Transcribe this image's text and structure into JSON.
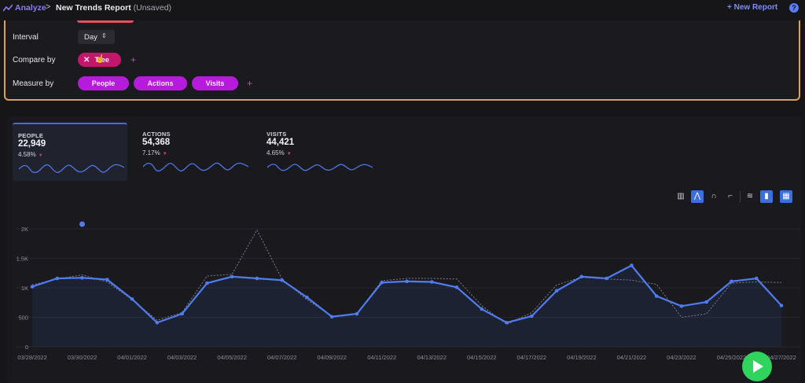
{
  "breadcrumb": {
    "app": "Analyze",
    "separator": ">",
    "title": "New Trends Report",
    "status": "(Unsaved)"
  },
  "header": {
    "new_report": "+ New Report",
    "help": "?"
  },
  "query": {
    "interval_label": "Interval",
    "interval_value": "Day",
    "compare_label": "Compare by",
    "compare_value": "Tree",
    "measure_label": "Measure by",
    "measures": [
      "People",
      "Actions",
      "Visits"
    ],
    "add_symbol": "+"
  },
  "metrics": [
    {
      "label": "PEOPLE",
      "value": "22,949",
      "change": "4.58%",
      "active": true
    },
    {
      "label": "ACTIONS",
      "value": "54,368",
      "change": "7.17%",
      "active": false
    },
    {
      "label": "VISITS",
      "value": "44,421",
      "change": "4.65%",
      "active": false
    }
  ],
  "toolbar": {
    "icons": [
      "bar-chart-icon",
      "line-chart-icon",
      "smooth-line-icon",
      "step-line-icon",
      "stacked-icon",
      "column-toggle-icon",
      "calendar-icon"
    ]
  },
  "colors": {
    "accent": "#3e6fe8",
    "compare_pill": "#c4166a",
    "measure_pill": "#b61bdc",
    "panel_border": "#d9a25b",
    "play": "#2fd35e"
  },
  "chart_data": {
    "type": "line",
    "y_ticks": [
      "0",
      "500",
      "1K",
      "1.5K",
      "2K"
    ],
    "ylim": [
      0,
      2000
    ],
    "x_tick_labels": [
      "03/28/2022",
      "03/30/2022",
      "04/01/2022",
      "04/03/2022",
      "04/05/2022",
      "04/07/2022",
      "04/09/2022",
      "04/11/2022",
      "04/13/2022",
      "04/15/2022",
      "04/17/2022",
      "04/19/2022",
      "04/21/2022",
      "04/23/2022",
      "04/25/2022",
      "04/27/2022"
    ],
    "x": [
      "03/28/2022",
      "03/29/2022",
      "03/30/2022",
      "03/31/2022",
      "04/01/2022",
      "04/02/2022",
      "04/03/2022",
      "04/04/2022",
      "04/05/2022",
      "04/06/2022",
      "04/07/2022",
      "04/08/2022",
      "04/09/2022",
      "04/10/2022",
      "04/11/2022",
      "04/12/2022",
      "04/13/2022",
      "04/14/2022",
      "04/15/2022",
      "04/16/2022",
      "04/17/2022",
      "04/18/2022",
      "04/19/2022",
      "04/20/2022",
      "04/21/2022",
      "04/22/2022",
      "04/23/2022",
      "04/24/2022",
      "04/25/2022",
      "04/26/2022",
      "04/27/2022"
    ],
    "series": [
      {
        "values": [
          1020,
          1160,
          1170,
          1140,
          810,
          410,
          560,
          1080,
          1190,
          1160,
          1130,
          840,
          510,
          560,
          1090,
          1110,
          1100,
          1010,
          640,
          410,
          520,
          950,
          1190,
          1160,
          1380,
          860,
          690,
          760,
          1110,
          1160,
          700
        ]
      },
      {
        "values": [
          1050,
          1150,
          1220,
          1100,
          800,
          450,
          580,
          1200,
          1230,
          1980,
          1150,
          800,
          520,
          560,
          1120,
          1160,
          1160,
          1150,
          700,
          380,
          580,
          1050,
          1180,
          1150,
          1130,
          1060,
          500,
          560,
          1080,
          1100,
          1090
        ]
      }
    ],
    "highlight_point": {
      "x": "03/30/2022",
      "y": 2080
    },
    "grid": true
  }
}
